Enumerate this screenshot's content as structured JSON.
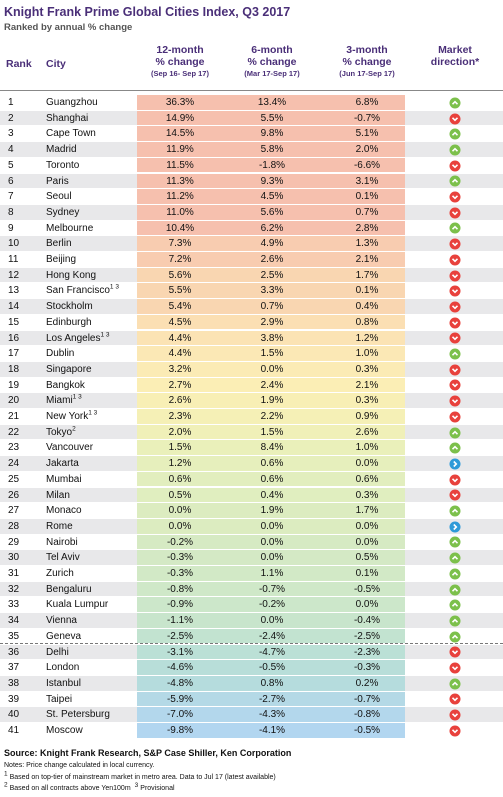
{
  "header": {
    "title": "Knight Frank Prime Global Cities Index, Q3 2017",
    "subtitle": "Ranked by annual % change"
  },
  "columns": {
    "rank": "Rank",
    "city": "City",
    "m12": {
      "lines": [
        "12-month",
        "% change"
      ],
      "period": "(Sep 16- Sep 17)"
    },
    "m6": {
      "lines": [
        "6-month",
        "% change"
      ],
      "period": "(Mar 17-Sep 17)"
    },
    "m3": {
      "lines": [
        "3-month",
        "% change"
      ],
      "period": "(Jun 17-Sep 17)"
    },
    "direction": {
      "lines": [
        "Market",
        "direction*"
      ]
    }
  },
  "table": {
    "rows": [
      {
        "rank": 1,
        "city": "Guangzhou",
        "m12": "36.3%",
        "m6": "13.4%",
        "m3": "6.8%",
        "direction": "up",
        "color": "#f6c0ae"
      },
      {
        "rank": 2,
        "city": "Shanghai",
        "m12": "14.9%",
        "m6": "5.5%",
        "m3": "-0.7%",
        "direction": "down",
        "color": "#f6c0ae"
      },
      {
        "rank": 3,
        "city": "Cape Town",
        "m12": "14.5%",
        "m6": "9.8%",
        "m3": "5.1%",
        "direction": "up",
        "color": "#f6c0ae"
      },
      {
        "rank": 4,
        "city": "Madrid",
        "m12": "11.9%",
        "m6": "5.8%",
        "m3": "2.0%",
        "direction": "up",
        "color": "#f6c0ae"
      },
      {
        "rank": 5,
        "city": "Toronto",
        "m12": "11.5%",
        "m6": "-1.8%",
        "m3": "-6.6%",
        "direction": "down",
        "color": "#f6c0ae"
      },
      {
        "rank": 6,
        "city": "Paris",
        "m12": "11.3%",
        "m6": "9.3%",
        "m3": "3.1%",
        "direction": "up",
        "color": "#f6c0ae"
      },
      {
        "rank": 7,
        "city": "Seoul",
        "m12": "11.2%",
        "m6": "4.5%",
        "m3": "0.1%",
        "direction": "down",
        "color": "#f6c0ae"
      },
      {
        "rank": 8,
        "city": "Sydney",
        "m12": "11.0%",
        "m6": "5.6%",
        "m3": "0.7%",
        "direction": "down",
        "color": "#f6c0ae"
      },
      {
        "rank": 9,
        "city": "Melbourne",
        "m12": "10.4%",
        "m6": "6.2%",
        "m3": "2.8%",
        "direction": "up",
        "color": "#f6c0ae"
      },
      {
        "rank": 10,
        "city": "Berlin",
        "m12": "7.3%",
        "m6": "4.9%",
        "m3": "1.3%",
        "direction": "down",
        "color": "#f8ccb0"
      },
      {
        "rank": 11,
        "city": "Beijing",
        "m12": "7.2%",
        "m6": "2.6%",
        "m3": "2.1%",
        "direction": "down",
        "color": "#f8ccb0"
      },
      {
        "rank": 12,
        "city": "Hong Kong",
        "m12": "5.6%",
        "m6": "2.5%",
        "m3": "1.7%",
        "direction": "down",
        "color": "#f9d6b1"
      },
      {
        "rank": 13,
        "city": "San Francisco",
        "sup": "1 3",
        "m12": "5.5%",
        "m6": "3.3%",
        "m3": "0.1%",
        "direction": "down",
        "color": "#f9d6b1"
      },
      {
        "rank": 14,
        "city": "Stockholm",
        "m12": "5.4%",
        "m6": "0.7%",
        "m3": "0.4%",
        "direction": "down",
        "color": "#f9d6b1"
      },
      {
        "rank": 15,
        "city": "Edinburgh",
        "m12": "4.5%",
        "m6": "2.9%",
        "m3": "0.8%",
        "direction": "down",
        "color": "#fbdfb3"
      },
      {
        "rank": 16,
        "city": "Los Angeles",
        "sup": "1 3",
        "m12": "4.4%",
        "m6": "3.8%",
        "m3": "1.2%",
        "direction": "down",
        "color": "#fbe3b4"
      },
      {
        "rank": 17,
        "city": "Dublin",
        "m12": "4.4%",
        "m6": "1.5%",
        "m3": "1.0%",
        "direction": "up",
        "color": "#fbe8b5"
      },
      {
        "rank": 18,
        "city": "Singapore",
        "m12": "3.2%",
        "m6": "0.0%",
        "m3": "0.3%",
        "direction": "down",
        "color": "#fbebb5"
      },
      {
        "rank": 19,
        "city": "Bangkok",
        "m12": "2.7%",
        "m6": "2.4%",
        "m3": "2.1%",
        "direction": "down",
        "color": "#fbeeb5"
      },
      {
        "rank": 20,
        "city": "Miami",
        "sup": "1 3",
        "m12": "2.6%",
        "m6": "1.9%",
        "m3": "0.3%",
        "direction": "down",
        "color": "#f8efb5"
      },
      {
        "rank": 21,
        "city": "New York",
        "sup": "1 3",
        "m12": "2.3%",
        "m6": "2.2%",
        "m3": "0.9%",
        "direction": "down",
        "color": "#f5f0b6"
      },
      {
        "rank": 22,
        "city": "Tokyo",
        "sup": "2",
        "m12": "2.0%",
        "m6": "1.5%",
        "m3": "2.6%",
        "direction": "up",
        "color": "#f0f0b8"
      },
      {
        "rank": 23,
        "city": "Vancouver",
        "m12": "1.5%",
        "m6": "8.4%",
        "m3": "1.0%",
        "direction": "up",
        "color": "#eaf0ba"
      },
      {
        "rank": 24,
        "city": "Jakarta",
        "m12": "1.2%",
        "m6": "0.6%",
        "m3": "0.0%",
        "direction": "flat",
        "color": "#e6efbc"
      },
      {
        "rank": 25,
        "city": "Mumbai",
        "m12": "0.6%",
        "m6": "0.6%",
        "m3": "0.6%",
        "direction": "down",
        "color": "#e2eebe"
      },
      {
        "rank": 26,
        "city": "Milan",
        "m12": "0.5%",
        "m6": "0.4%",
        "m3": "0.3%",
        "direction": "down",
        "color": "#e0eebf"
      },
      {
        "rank": 27,
        "city": "Monaco",
        "m12": "0.0%",
        "m6": "1.9%",
        "m3": "1.7%",
        "direction": "up",
        "color": "#dcecc0"
      },
      {
        "rank": 28,
        "city": "Rome",
        "m12": "0.0%",
        "m6": "0.0%",
        "m3": "0.0%",
        "direction": "flat",
        "color": "#dcecc0"
      },
      {
        "rank": 29,
        "city": "Nairobi",
        "m12": "-0.2%",
        "m6": "0.0%",
        "m3": "0.0%",
        "direction": "up",
        "color": "#d6eac3"
      },
      {
        "rank": 30,
        "city": "Tel Aviv",
        "m12": "-0.3%",
        "m6": "0.0%",
        "m3": "0.5%",
        "direction": "up",
        "color": "#d4e9c5"
      },
      {
        "rank": 31,
        "city": "Zurich",
        "m12": "-0.3%",
        "m6": "1.1%",
        "m3": "0.1%",
        "direction": "up",
        "color": "#d2e9c6"
      },
      {
        "rank": 32,
        "city": "Bengaluru",
        "m12": "-0.8%",
        "m6": "-0.7%",
        "m3": "-0.5%",
        "direction": "up",
        "color": "#cfe8c8"
      },
      {
        "rank": 33,
        "city": "Kuala Lumpur",
        "m12": "-0.9%",
        "m6": "-0.2%",
        "m3": "0.0%",
        "direction": "up",
        "color": "#cce7ca"
      },
      {
        "rank": 34,
        "city": "Vienna",
        "m12": "-1.1%",
        "m6": "0.0%",
        "m3": "-0.4%",
        "direction": "up",
        "color": "#c8e5cc"
      },
      {
        "rank": 35,
        "city": "Geneva",
        "m12": "-2.5%",
        "m6": "-2.4%",
        "m3": "-2.5%",
        "direction": "up",
        "color": "#c2e3d0"
      },
      {
        "rank": 36,
        "city": "Delhi",
        "m12": "-3.1%",
        "m6": "-4.7%",
        "m3": "-2.3%",
        "direction": "down",
        "color": "#bbe0d6"
      },
      {
        "rank": 37,
        "city": "London",
        "m12": "-4.6%",
        "m6": "-0.5%",
        "m3": "-0.3%",
        "direction": "down",
        "color": "#b8ded9"
      },
      {
        "rank": 38,
        "city": "Istanbul",
        "m12": "-4.8%",
        "m6": "0.8%",
        "m3": "0.2%",
        "direction": "up",
        "color": "#b5dcdd"
      },
      {
        "rank": 39,
        "city": "Taipei",
        "m12": "-5.9%",
        "m6": "-2.7%",
        "m3": "-0.7%",
        "direction": "down",
        "color": "#b4d9e6"
      },
      {
        "rank": 40,
        "city": "St. Petersburg",
        "m12": "-7.0%",
        "m6": "-4.3%",
        "m3": "-0.8%",
        "direction": "down",
        "color": "#b3d7ec"
      },
      {
        "rank": 41,
        "city": "Moscow",
        "m12": "-9.8%",
        "m6": "-4.1%",
        "m3": "-0.5%",
        "direction": "down",
        "color": "#b2d6f0"
      }
    ]
  },
  "footer": {
    "source": "Source: Knight Frank Research, S&P Case Shiller, Ken Corporation",
    "notes": "Notes: Price change calculated in local currency.",
    "footnotes": [
      {
        "mark": "1",
        "text": "Based on top-tier of mainstream market in metro area. Data to Jul 17 (latest available)"
      },
      {
        "mark": "2",
        "text": "Based on all contracts above Yen100m"
      },
      {
        "mark": "3",
        "text": "Provisional"
      }
    ]
  }
}
